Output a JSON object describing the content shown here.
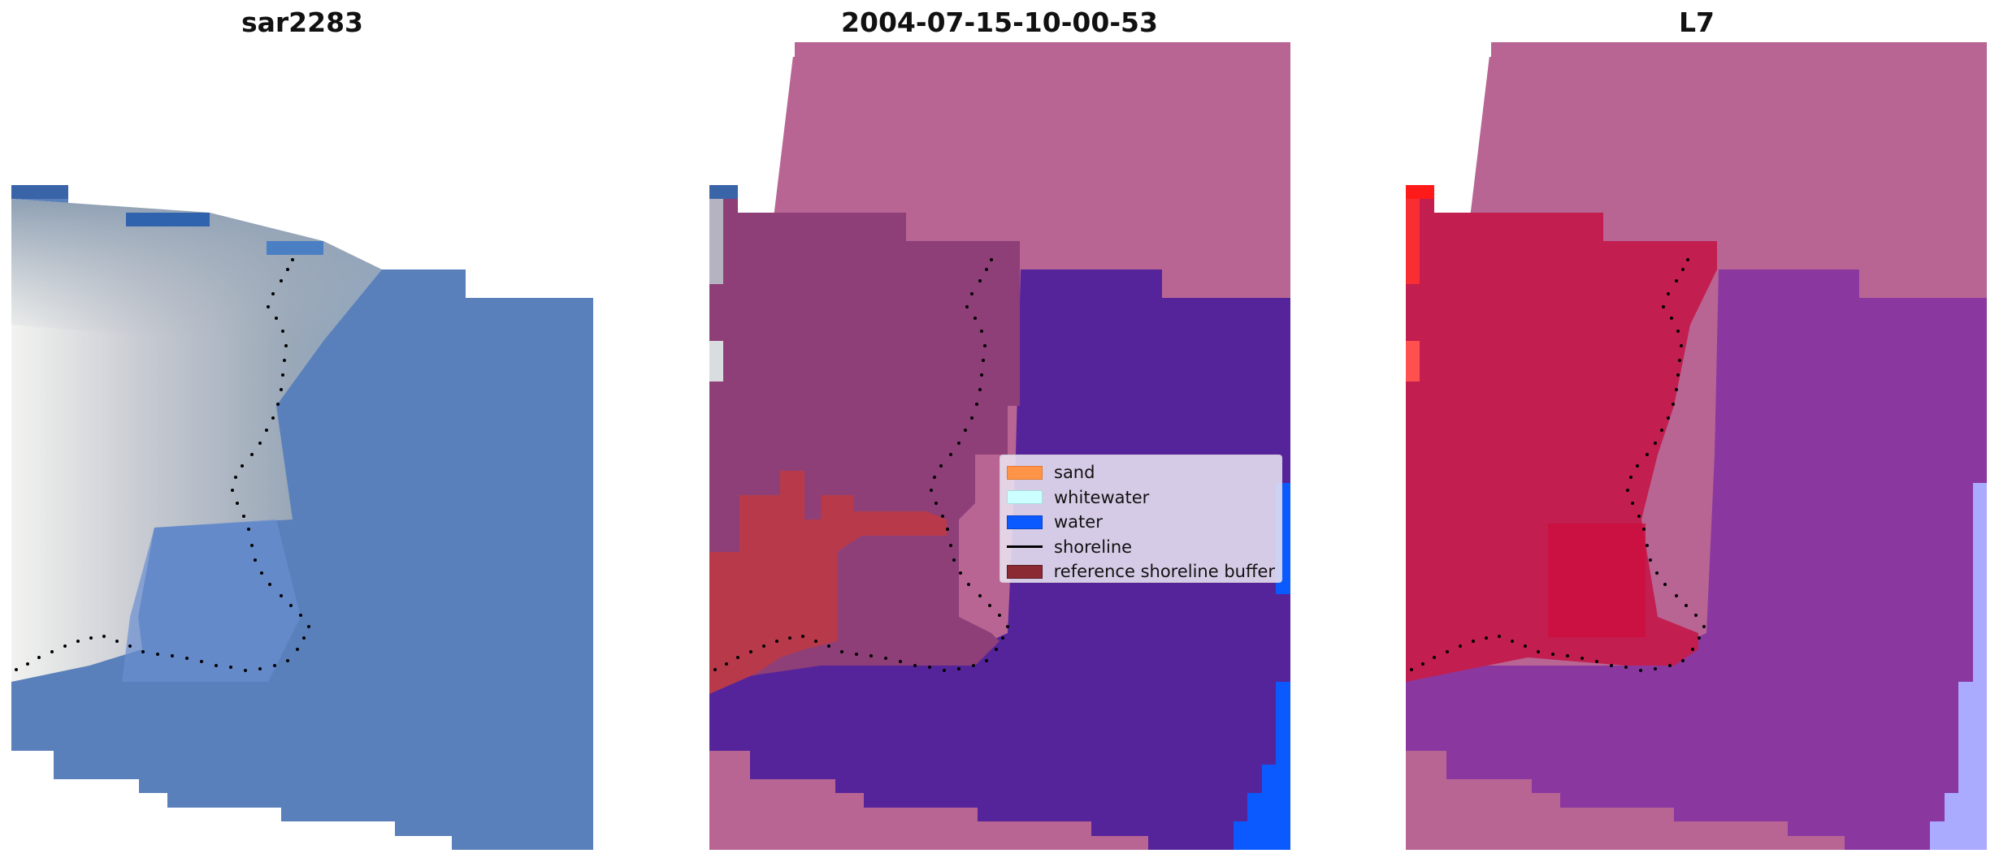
{
  "titles": {
    "left": "sar2283",
    "middle": "2004-07-15-10-00-53",
    "right": "L7"
  },
  "legend": {
    "items": [
      {
        "label": "sand",
        "kind": "patch",
        "color": "#ff9448",
        "border": "#e07a30"
      },
      {
        "label": "whitewater",
        "kind": "patch",
        "color": "#ccffff",
        "border": "#a8dede"
      },
      {
        "label": "water",
        "kind": "patch",
        "color": "#0a5aff",
        "border": "#0845c8"
      },
      {
        "label": "shoreline",
        "kind": "line",
        "color": "#000000"
      },
      {
        "label": "reference shoreline buffer",
        "kind": "patch",
        "color": "#8c2a33",
        "border": "#5a1a20"
      }
    ]
  },
  "colors": {
    "sar_land": "#c9cdd6",
    "sar_water": "#5a80bb",
    "sar_deep": "#3466b4",
    "class_nodata": "#b86594",
    "class_land": "#8e3f78",
    "class_water": "#55249a",
    "class_buffer": "#b83a4a",
    "class_bluestrip": "#0a5aff",
    "l7_nodata": "#b86594",
    "l7_land": "#c21e4f",
    "l7_water": "#8a38a0",
    "l7_lightblue": "#aaaaff",
    "shoreline_dots": "#000000"
  }
}
